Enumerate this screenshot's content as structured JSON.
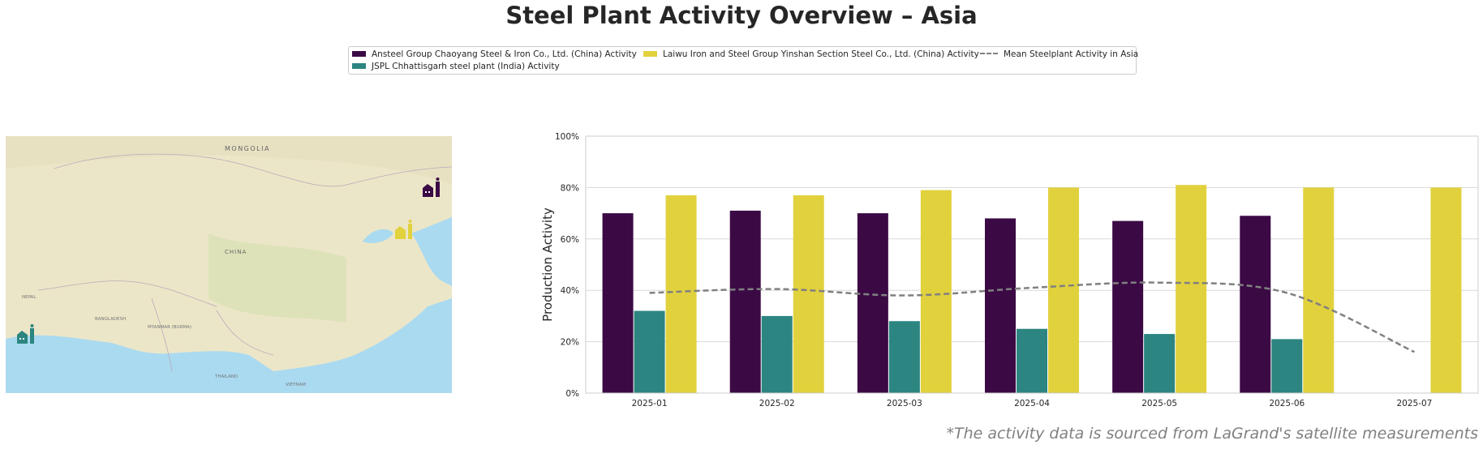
{
  "title": "Steel Plant Activity Overview – Asia",
  "footnote": "*The activity data is sourced from LaGrand's satellite measurements",
  "legend": {
    "items": [
      {
        "label": "Ansteel Group Chaoyang Steel & Iron Co., Ltd. (China) Activity",
        "color": "#3b0a45"
      },
      {
        "label": "JSPL Chhattisgarh steel plant (India) Activity",
        "color": "#2c8580"
      },
      {
        "label": "Laiwu Iron and Steel Group Yinshan Section Steel Co., Ltd. (China) Activity",
        "color": "#e1d13d"
      },
      {
        "label": "Mean Steelplant Activity in Asia",
        "color": "#808080"
      }
    ]
  },
  "map": {
    "labels": [
      "MONGOLIA",
      "CHINA",
      "MYANMAR (BURMA)",
      "BANGLADESH",
      "NEPAL",
      "THAILAND",
      "VIETNAM"
    ],
    "markers": [
      {
        "name": "Ansteel Group Chaoyang",
        "color": "#3b0a45"
      },
      {
        "name": "Laiwu Iron and Steel",
        "color": "#e1d13d"
      },
      {
        "name": "JSPL Chhattisgarh",
        "color": "#2c8580"
      }
    ]
  },
  "chart_data": {
    "type": "bar",
    "categories": [
      "2025-01",
      "2025-02",
      "2025-03",
      "2025-04",
      "2025-05",
      "2025-06",
      "2025-07"
    ],
    "series": [
      {
        "name": "Ansteel Group Chaoyang Steel & Iron Co., Ltd. (China) Activity",
        "color": "#3b0a45",
        "values": [
          70,
          71,
          70,
          68,
          67,
          69,
          null
        ]
      },
      {
        "name": "JSPL Chhattisgarh steel plant (India) Activity",
        "color": "#2c8580",
        "values": [
          32,
          30,
          28,
          25,
          23,
          21,
          null
        ]
      },
      {
        "name": "Laiwu Iron and Steel Group Yinshan Section Steel Co., Ltd. (China) Activity",
        "color": "#e1d13d",
        "values": [
          77,
          77,
          79,
          80,
          81,
          80,
          80
        ]
      }
    ],
    "line": {
      "name": "Mean Steelplant Activity in Asia",
      "color": "#808080",
      "values": [
        39,
        40.5,
        38,
        41,
        43,
        39,
        16
      ]
    },
    "ylabel": "Production Activity",
    "yticks": [
      "0%",
      "20%",
      "40%",
      "60%",
      "80%",
      "100%"
    ],
    "ylim": [
      0,
      100
    ],
    "grid": true
  }
}
